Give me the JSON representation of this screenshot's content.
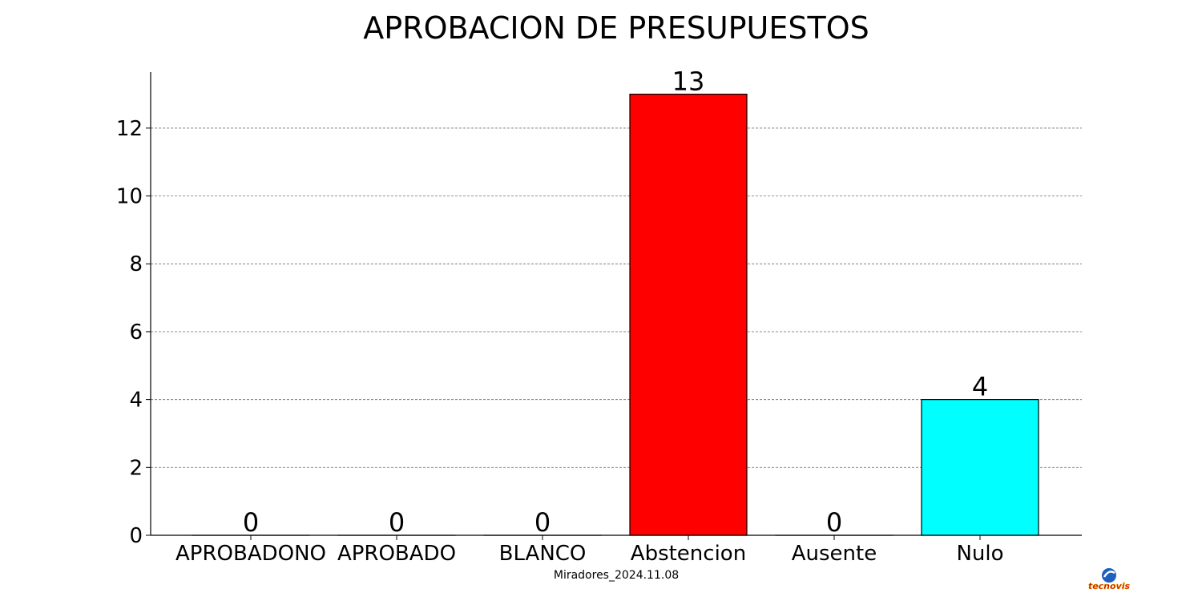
{
  "chart_data": {
    "type": "bar",
    "title": "APROBACION DE PRESUPUESTOS",
    "categories": [
      "APROBADONO",
      "APROBADO",
      "BLANCO",
      "Abstencion",
      "Ausente",
      "Nulo"
    ],
    "values": [
      0,
      0,
      0,
      13,
      0,
      4
    ],
    "data_labels": [
      "0",
      "0",
      "0",
      "13",
      "0",
      "4"
    ],
    "bar_colors": [
      "#ffffff",
      "#ffffff",
      "#ffffff",
      "#ff0000",
      "#ffffff",
      "#00ffff"
    ],
    "xlabel": "",
    "ylabel": "",
    "ylim": [
      0,
      13.65
    ],
    "y_ticks": [
      0,
      2,
      4,
      6,
      8,
      10,
      12
    ],
    "grid": "horizontal dashed",
    "caption": "Miradores_2024.11.08"
  },
  "logo": {
    "text": "tecnovis",
    "colors": {
      "primary": "#1f5fbf",
      "text": "#cc1111",
      "accent": "#f2c200"
    }
  }
}
